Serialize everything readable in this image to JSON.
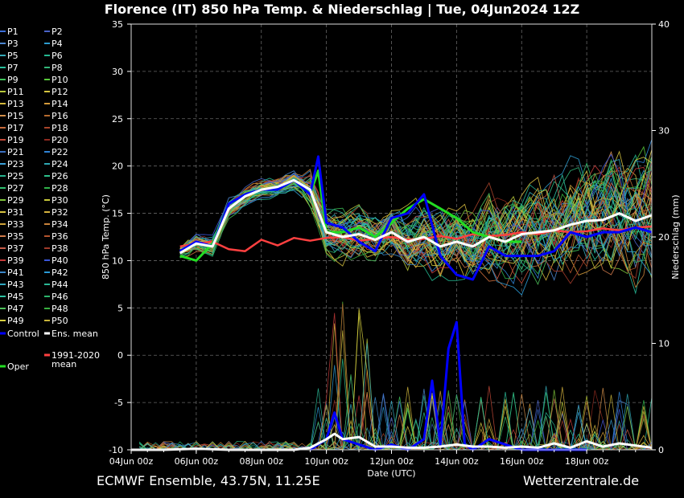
{
  "title": "Florence  (IT)  850 hPa Temp. & Niederschlag | Tue, 04Jun2024 12Z",
  "footer": {
    "left": "ECMWF Ensemble, 43.75N, 11.25E",
    "right": "Wetterzentrale.de"
  },
  "chart_data": {
    "type": "line",
    "x_unit": "days since 04Jun 00z",
    "xlabel": "Date (UTC)",
    "ylabel": "850 hPa Temp. (°C)",
    "y2label": "Niederschlag (mm)",
    "ylim": [
      -10,
      35
    ],
    "y2lim": [
      0,
      40
    ],
    "xlim": [
      0,
      16
    ],
    "x_ticks": [
      {
        "x": 0,
        "label": "04Jun 00z"
      },
      {
        "x": 2,
        "label": "06Jun 00z"
      },
      {
        "x": 4,
        "label": "08Jun 00z"
      },
      {
        "x": 6,
        "label": "10Jun 00z"
      },
      {
        "x": 8,
        "label": "12Jun 00z"
      },
      {
        "x": 10,
        "label": "14Jun 00z"
      },
      {
        "x": 12,
        "label": "16Jun 00z"
      },
      {
        "x": 14,
        "label": "18Jun 00z"
      }
    ],
    "y_ticks": [
      35,
      30,
      25,
      20,
      15,
      10,
      5,
      0,
      -5,
      -10
    ],
    "y2_ticks": [
      40,
      30,
      20,
      10,
      0
    ],
    "grid": true,
    "legend_position": "left",
    "legend": [
      {
        "name": "P1",
        "color": "#3b6dd8"
      },
      {
        "name": "P2",
        "color": "#4a63c8"
      },
      {
        "name": "P3",
        "color": "#4c86d0"
      },
      {
        "name": "P4",
        "color": "#2d9ccf"
      },
      {
        "name": "P5",
        "color": "#34aab8"
      },
      {
        "name": "P6",
        "color": "#24b890"
      },
      {
        "name": "P7",
        "color": "#29c09c"
      },
      {
        "name": "P8",
        "color": "#33b67a"
      },
      {
        "name": "P9",
        "color": "#3fc45a"
      },
      {
        "name": "P10",
        "color": "#58c83a"
      },
      {
        "name": "P11",
        "color": "#b8c83a"
      },
      {
        "name": "P12",
        "color": "#d6c540"
      },
      {
        "name": "P13",
        "color": "#d4b93c"
      },
      {
        "name": "P14",
        "color": "#d49a3a"
      },
      {
        "name": "P15",
        "color": "#d48f4a"
      },
      {
        "name": "P16",
        "color": "#b56a2e"
      },
      {
        "name": "P17",
        "color": "#c86a3a"
      },
      {
        "name": "P18",
        "color": "#a8442a"
      },
      {
        "name": "P19",
        "color": "#c44a38"
      },
      {
        "name": "P20",
        "color": "#8e2a20"
      },
      {
        "name": "P21",
        "color": "#3a6fc0"
      },
      {
        "name": "P22",
        "color": "#2f84d6"
      },
      {
        "name": "P23",
        "color": "#3aa0d8"
      },
      {
        "name": "P24",
        "color": "#2ea7b3"
      },
      {
        "name": "P25",
        "color": "#26b38e"
      },
      {
        "name": "P26",
        "color": "#2cc08a"
      },
      {
        "name": "P27",
        "color": "#2fbf6e"
      },
      {
        "name": "P28",
        "color": "#30b24a"
      },
      {
        "name": "P29",
        "color": "#7ec43a"
      },
      {
        "name": "P30",
        "color": "#c8c83a"
      },
      {
        "name": "P31",
        "color": "#d8c440"
      },
      {
        "name": "P32",
        "color": "#d6b33e"
      },
      {
        "name": "P33",
        "color": "#d0a43a"
      },
      {
        "name": "P34",
        "color": "#c8823a"
      },
      {
        "name": "P35",
        "color": "#d07a4a"
      },
      {
        "name": "P36",
        "color": "#b4542e"
      },
      {
        "name": "P37",
        "color": "#c85a48"
      },
      {
        "name": "P38",
        "color": "#a03a2a"
      },
      {
        "name": "P39",
        "color": "#c43a38"
      },
      {
        "name": "P40",
        "color": "#3a56d8"
      },
      {
        "name": "P41",
        "color": "#3a86c8"
      },
      {
        "name": "P42",
        "color": "#2a9ad6"
      },
      {
        "name": "P43",
        "color": "#30a8c0"
      },
      {
        "name": "P44",
        "color": "#2ab896"
      },
      {
        "name": "P45",
        "color": "#2ec2a2"
      },
      {
        "name": "P46",
        "color": "#2cb46c"
      },
      {
        "name": "P47",
        "color": "#4cc05a"
      },
      {
        "name": "P48",
        "color": "#38b040"
      },
      {
        "name": "P49",
        "color": "#d8d040"
      },
      {
        "name": "P50",
        "color": "#c8b43a"
      },
      {
        "name": "Control",
        "color": "#0000ff"
      },
      {
        "name": "Ens. mean",
        "color": "#ffffff"
      },
      {
        "name": "1991-2020 mean",
        "color": "#ff4040"
      },
      {
        "name": "Oper",
        "color": "#22dd22"
      }
    ],
    "series": [
      {
        "name": "Control",
        "axis": "temp",
        "x": [
          1.5,
          2,
          2.5,
          3,
          3.5,
          4,
          4.5,
          5,
          5.5,
          5.75,
          6,
          6.5,
          7,
          7.5,
          8,
          8.5,
          9,
          9.5,
          10,
          10.5,
          11,
          11.5,
          12,
          12.5,
          13,
          13.5,
          14,
          14.5,
          15,
          15.5,
          16
        ],
        "values": [
          11,
          12,
          11.5,
          16,
          17,
          17.5,
          17.5,
          18.5,
          17,
          21,
          14,
          13.5,
          12,
          11,
          14.5,
          15,
          17,
          10.5,
          8.5,
          8,
          11.5,
          10.5,
          10.5,
          10.5,
          11,
          13,
          12.5,
          13,
          13,
          13.5,
          13
        ]
      },
      {
        "name": "Ens. mean",
        "axis": "temp",
        "x": [
          1.5,
          2,
          2.5,
          3,
          3.5,
          4,
          4.5,
          5,
          5.5,
          6,
          6.5,
          7,
          7.5,
          8,
          8.5,
          9,
          9.5,
          10,
          10.5,
          11,
          11.5,
          12,
          12.5,
          13,
          13.5,
          14,
          14.5,
          15,
          15.5,
          16
        ],
        "values": [
          10.8,
          11.8,
          11.5,
          15.5,
          16.8,
          17.5,
          17.8,
          18.5,
          17.5,
          13,
          12.5,
          12.8,
          12.2,
          13,
          12,
          12.5,
          11.5,
          12,
          11.5,
          12.5,
          12,
          12.8,
          13,
          13.2,
          13.8,
          14.2,
          14.3,
          15,
          14.2,
          14.8
        ]
      },
      {
        "name": "1991-2020 mean",
        "axis": "temp",
        "x": [
          1.5,
          2,
          2.5,
          3,
          3.5,
          4,
          4.5,
          5,
          5.5,
          6,
          6.5,
          7,
          7.5,
          8,
          8.5,
          9,
          9.5,
          10,
          10.5,
          11,
          11.5,
          12,
          12.5,
          13,
          13.5,
          14,
          14.5,
          15,
          15.5,
          16
        ],
        "values": [
          11.5,
          11.8,
          12,
          11.2,
          11,
          12.2,
          11.6,
          12.4,
          12.1,
          12.4,
          12.5,
          12.1,
          12.3,
          12.5,
          12.2,
          12.3,
          12.6,
          12.3,
          12.8,
          12.6,
          12.7,
          13,
          12.8,
          13.2,
          13,
          13.1,
          13.4,
          13.2,
          13.5,
          13.6
        ]
      },
      {
        "name": "Oper",
        "axis": "temp",
        "x": [
          1.5,
          2,
          2.5,
          3,
          3.5,
          4,
          4.5,
          5,
          5.5,
          5.75,
          6,
          6.5,
          7,
          7.5,
          8,
          8.5,
          9,
          9.5,
          10,
          10.5,
          11,
          11.5,
          12
        ],
        "values": [
          10.5,
          10,
          11.8,
          16,
          17,
          17.5,
          17.5,
          18.5,
          17,
          19.5,
          13,
          13,
          13.5,
          12.5,
          14,
          15.5,
          16.5,
          15.5,
          14.5,
          13,
          12.5,
          12,
          12
        ]
      },
      {
        "name": "Control precip",
        "axis": "precip",
        "x": [
          5.5,
          6,
          6.25,
          6.5,
          7,
          7.5,
          8,
          8.5,
          9,
          9.25,
          9.5,
          9.75,
          10,
          10.25,
          10.5,
          11,
          12,
          13,
          14
        ],
        "values": [
          0,
          1,
          3.5,
          1,
          0.5,
          0,
          0.5,
          0,
          1,
          6.5,
          0.5,
          9.5,
          12,
          0.5,
          0,
          1,
          0,
          0,
          0
        ]
      },
      {
        "name": "Ens. mean precip",
        "axis": "precip",
        "x": [
          0,
          1,
          2,
          3,
          4,
          5,
          5.5,
          6,
          6.25,
          6.5,
          7,
          7.5,
          8,
          8.5,
          9,
          9.5,
          10,
          10.5,
          11,
          11.5,
          12,
          12.5,
          13,
          13.5,
          14,
          14.5,
          15,
          15.5,
          16
        ],
        "values": [
          0,
          0,
          0.1,
          0,
          0,
          0,
          0.2,
          1,
          1.5,
          1,
          1.2,
          0.3,
          0.3,
          0.2,
          0.2,
          0.3,
          0.5,
          0.3,
          0.3,
          0.2,
          0.3,
          0.2,
          0.6,
          0.2,
          0.8,
          0.3,
          0.6,
          0.4,
          0.2
        ]
      }
    ]
  }
}
